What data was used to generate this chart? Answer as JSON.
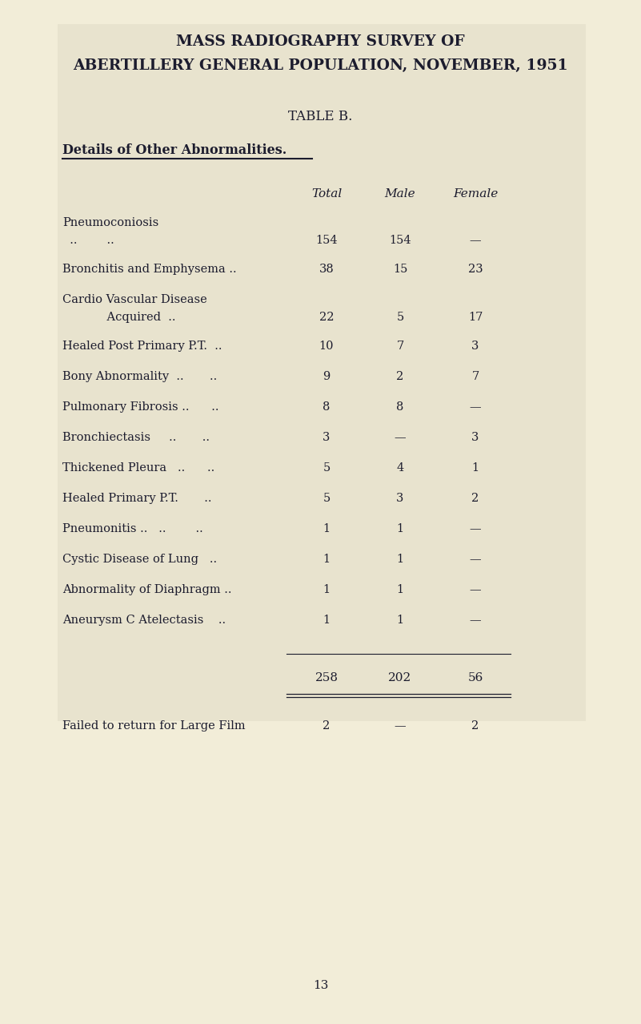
{
  "title_line1": "MASS RADIOGRAPHY SURVEY OF",
  "title_line2": "ABERTILLERY GENERAL POPULATION, NOVEMBER, 1951",
  "subtitle": "TABLE B.",
  "section_header": "Details of Other Abnormalities.",
  "col_headers": [
    "Total",
    "Male",
    "Female"
  ],
  "rows": [
    {
      "label1": "Pneumoconiosis",
      "label2": "  ..        ..",
      "total": "154",
      "male": "154",
      "female": "—"
    },
    {
      "label1": "Bronchitis and Emphysema ..",
      "label2": "",
      "total": "38",
      "male": "15",
      "female": "23"
    },
    {
      "label1": "Cardio Vascular Disease",
      "label2": "            Acquired  ..",
      "total": "22",
      "male": "5",
      "female": "17"
    },
    {
      "label1": "Healed Post Primary P.T.  ..",
      "label2": "",
      "total": "10",
      "male": "7",
      "female": "3"
    },
    {
      "label1": "Bony Abnormality  ..       ..",
      "label2": "",
      "total": "9",
      "male": "2",
      "female": "7"
    },
    {
      "label1": "Pulmonary Fibrosis ..      ..",
      "label2": "",
      "total": "8",
      "male": "8",
      "female": "—"
    },
    {
      "label1": "Bronchiectasis     ..       ..",
      "label2": "",
      "total": "3",
      "male": "—",
      "female": "3"
    },
    {
      "label1": "Thickened Pleura   ..      ..",
      "label2": "",
      "total": "5",
      "male": "4",
      "female": "1"
    },
    {
      "label1": "Healed Primary P.T.       ..",
      "label2": "",
      "total": "5",
      "male": "3",
      "female": "2"
    },
    {
      "label1": "Pneumonitis ..   ..        ..",
      "label2": "",
      "total": "1",
      "male": "1",
      "female": "—"
    },
    {
      "label1": "Cystic Disease of Lung   ..",
      "label2": "",
      "total": "1",
      "male": "1",
      "female": "—"
    },
    {
      "label1": "Abnormality of Diaphragm ..",
      "label2": "",
      "total": "1",
      "male": "1",
      "female": "—"
    },
    {
      "label1": "Aneurysm C Atelectasis    ..",
      "label2": "",
      "total": "1",
      "male": "1",
      "female": "—"
    }
  ],
  "totals_row": {
    "total": "258",
    "male": "202",
    "female": "56"
  },
  "footer_row": {
    "label1": "Failed to return for Large Film",
    "total": "2",
    "male": "—",
    "female": "2"
  },
  "page_number": "13",
  "bg_color": "#f2edd8",
  "box_bg": "#e8e3ce",
  "text_color": "#1c1c2e"
}
